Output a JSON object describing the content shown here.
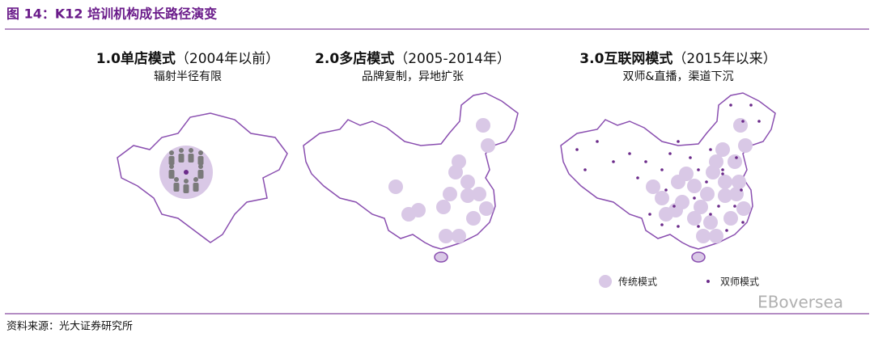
{
  "header": {
    "title": "图 14：K12 培训机构成长路径演变"
  },
  "stages": [
    {
      "title": "1.0单店模式",
      "period": "（2004年以前）",
      "description": "辐射半径有限"
    },
    {
      "title": "2.0多店模式",
      "period": "（2005-2014年）",
      "description": "品牌复制，异地扩张"
    },
    {
      "title": "3.0互联网模式",
      "period": "（2015年以来）",
      "description": "双师&直播，渠道下沉"
    }
  ],
  "legend": [
    {
      "label": "传统模式"
    },
    {
      "label": "双师模式"
    }
  ],
  "watermark": "EBoversea",
  "source": "资料来源：光大证券研究所"
}
